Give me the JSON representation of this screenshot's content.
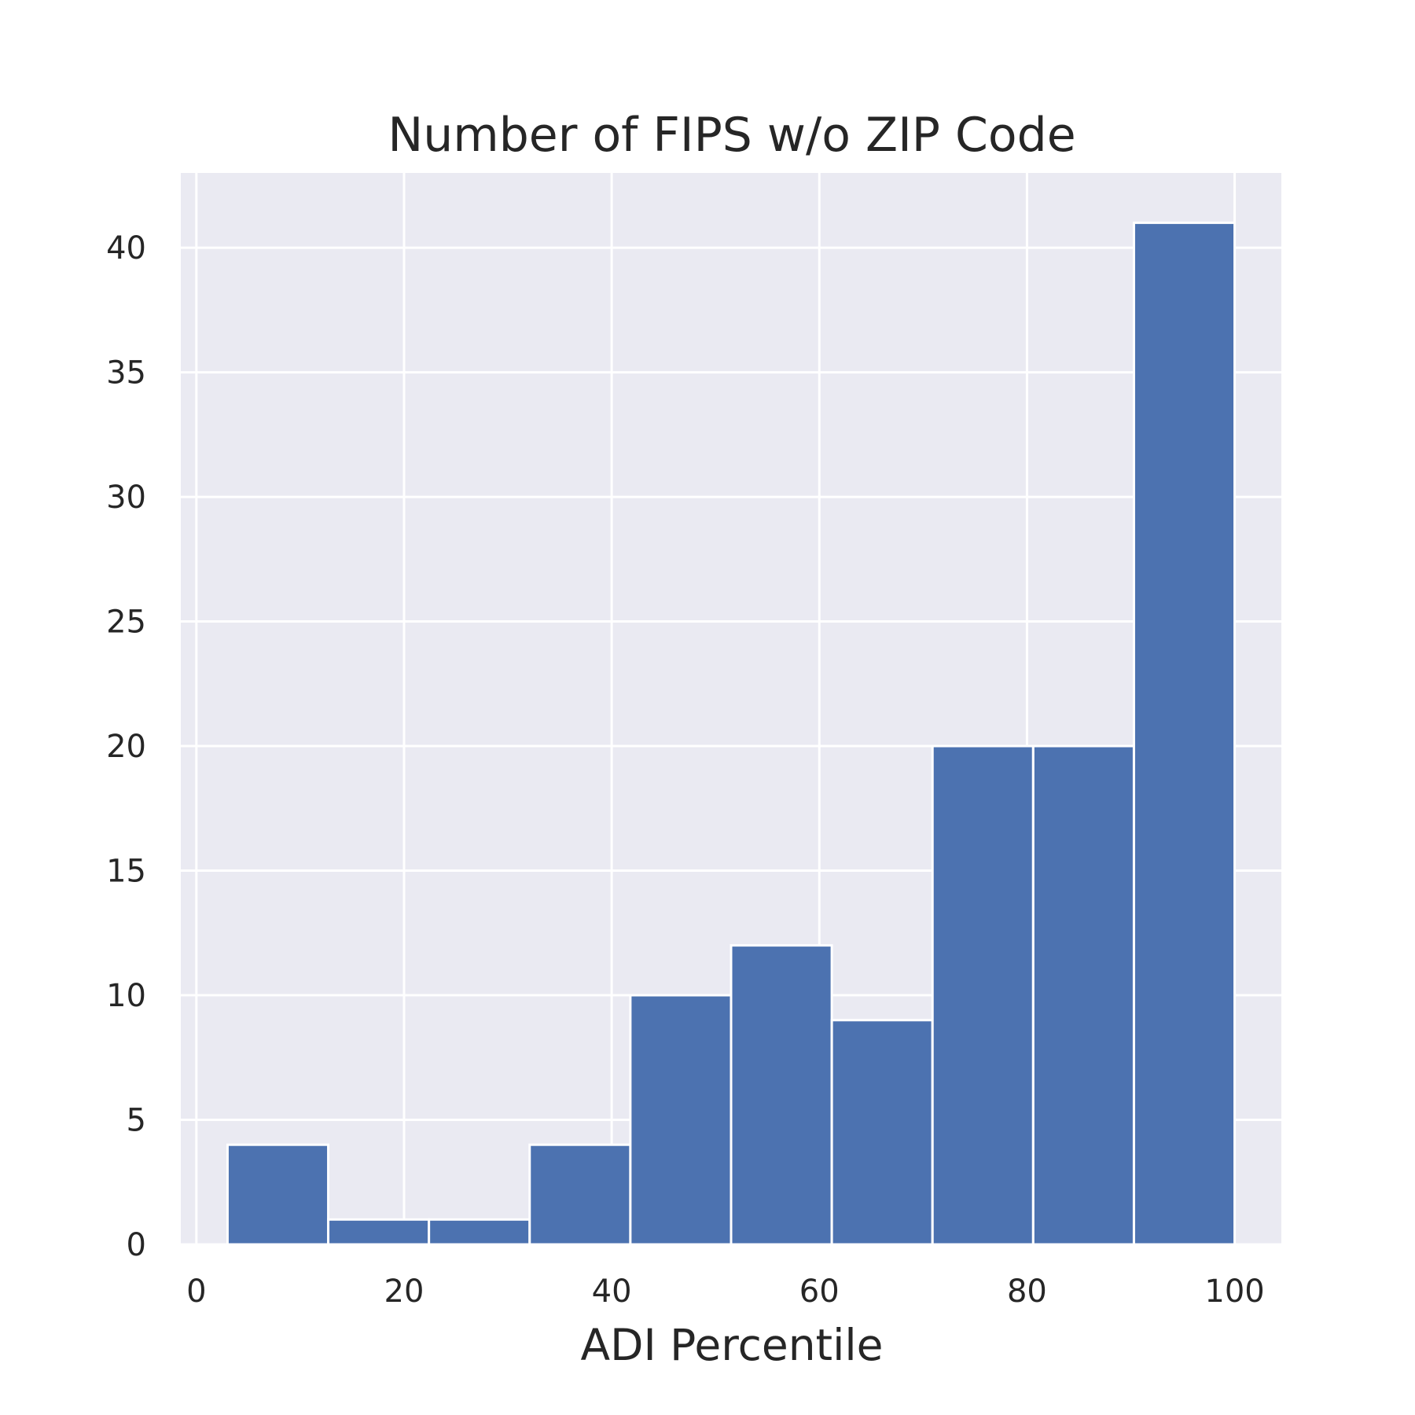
{
  "chart_data": {
    "type": "bar",
    "title": "Number of FIPS w/o ZIP Code",
    "xlabel": "ADI Percentile",
    "ylabel": "",
    "bins": [
      {
        "x0": 3,
        "x1": 12.7,
        "count": 4
      },
      {
        "x0": 12.7,
        "x1": 22.4,
        "count": 1
      },
      {
        "x0": 22.4,
        "x1": 32.1,
        "count": 1
      },
      {
        "x0": 32.1,
        "x1": 41.8,
        "count": 4
      },
      {
        "x0": 41.8,
        "x1": 51.5,
        "count": 10
      },
      {
        "x0": 51.5,
        "x1": 61.2,
        "count": 12
      },
      {
        "x0": 61.2,
        "x1": 70.9,
        "count": 9
      },
      {
        "x0": 70.9,
        "x1": 80.6,
        "count": 20
      },
      {
        "x0": 80.6,
        "x1": 90.3,
        "count": 20
      },
      {
        "x0": 90.3,
        "x1": 100,
        "count": 41
      }
    ],
    "xlim": [
      -1.5,
      104.5
    ],
    "ylim": [
      0,
      43
    ],
    "xticks": [
      0,
      20,
      40,
      60,
      80,
      100
    ],
    "yticks": [
      0,
      5,
      10,
      15,
      20,
      25,
      30,
      35,
      40
    ],
    "grid": true,
    "colors": {
      "bar": "#4c72b0",
      "background": "#eaeaf2",
      "grid": "#ffffff"
    }
  }
}
